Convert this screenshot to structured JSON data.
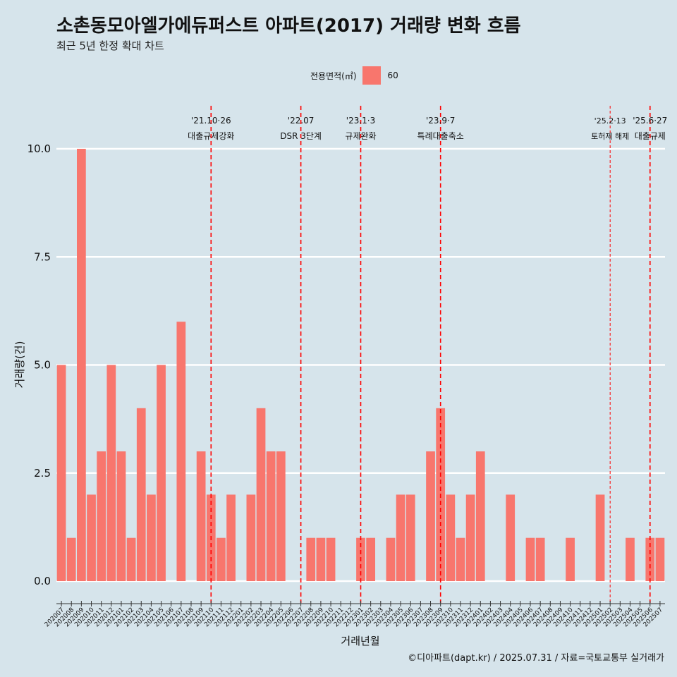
{
  "title": "소촌동모아엘가에듀퍼스트 아파트(2017) 거래량 변화 흐름",
  "subtitle": "최근 5년 한정 확대 차트",
  "caption": "©디아파트(dapt.kr) / 2025.07.31 / 자료=국토교통부 실거래가",
  "legend": {
    "title": "전용면적(㎡)",
    "items": [
      {
        "label": "60",
        "color": "#f8766d"
      }
    ]
  },
  "chart_data": {
    "type": "bar",
    "title": "소촌동모아엘가에듀퍼스트 아파트(2017) 거래량 변화 흐름",
    "subtitle": "최근 5년 한정 확대 차트",
    "xlabel": "거래년월",
    "ylabel": "거래량(건)",
    "ylim": [
      0,
      10
    ],
    "yticks": [
      0.0,
      2.5,
      5.0,
      7.5,
      10.0
    ],
    "ytick_labels": [
      "0.0",
      "2.5",
      "5.0",
      "7.5",
      "10.0"
    ],
    "grid": true,
    "legend_position": "top",
    "bar_color": "#f8766d",
    "categories": [
      "202007",
      "202008",
      "202009",
      "202010",
      "202011",
      "202012",
      "202101",
      "202102",
      "202103",
      "202104",
      "202105",
      "202106",
      "202107",
      "202108",
      "202109",
      "202110",
      "202111",
      "202112",
      "202201",
      "202202",
      "202203",
      "202204",
      "202205",
      "202206",
      "202207",
      "202208",
      "202209",
      "202210",
      "202211",
      "202212",
      "202301",
      "202302",
      "202303",
      "202304",
      "202305",
      "202306",
      "202307",
      "202308",
      "202309",
      "202310",
      "202311",
      "202312",
      "202401",
      "202402",
      "202403",
      "202404",
      "202405",
      "202406",
      "202407",
      "202408",
      "202409",
      "202410",
      "202411",
      "202412",
      "202501",
      "202502",
      "202503",
      "202504",
      "202505",
      "202506",
      "202507"
    ],
    "series": [
      {
        "name": "60",
        "values": [
          5,
          1,
          10,
          2,
          3,
          5,
          3,
          1,
          4,
          2,
          5,
          0,
          6,
          0,
          3,
          2,
          1,
          2,
          0,
          2,
          4,
          3,
          3,
          0,
          0,
          1,
          1,
          1,
          0,
          0,
          1,
          1,
          0,
          1,
          2,
          2,
          0,
          3,
          4,
          2,
          1,
          2,
          3,
          0,
          0,
          2,
          0,
          1,
          1,
          0,
          0,
          1,
          0,
          0,
          2,
          0,
          0,
          1,
          0,
          1,
          1
        ]
      }
    ],
    "annotations": [
      {
        "date_line": "'21.10·26",
        "label": "대출규제강화",
        "at": "202110",
        "style": "dashed"
      },
      {
        "date_line": "'22.07",
        "label": "DSR 3단계",
        "at": "202207",
        "style": "dashed"
      },
      {
        "date_line": "'23.1·3",
        "label": "규제완화",
        "at": "202301",
        "style": "dashed"
      },
      {
        "date_line": "'23.9·7",
        "label": "특례대출축소",
        "at": "202309",
        "style": "dashed"
      },
      {
        "date_line": "'25.2·13",
        "label": "토허제 해제",
        "at": "202502",
        "style": "thin-dashed"
      },
      {
        "date_line": "'25.6·27",
        "label": "대출규제",
        "at": "202506",
        "style": "dashed"
      }
    ]
  }
}
